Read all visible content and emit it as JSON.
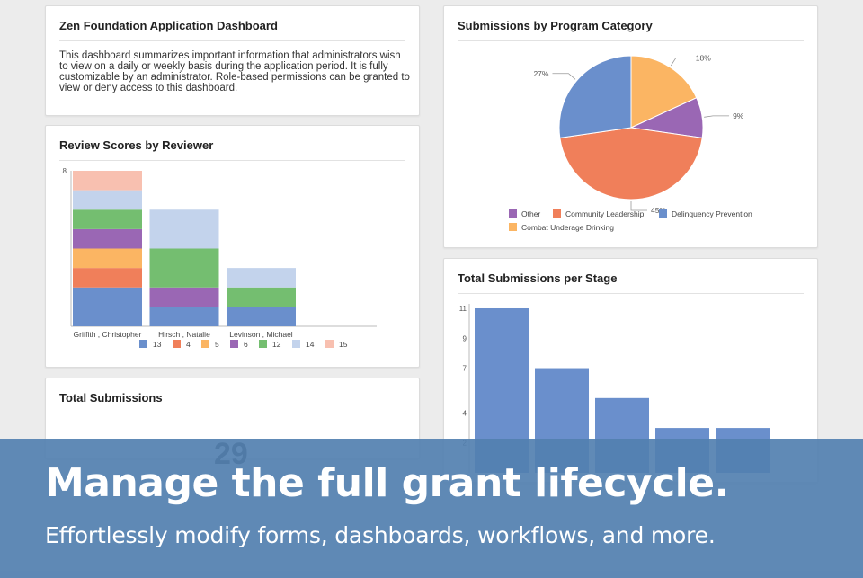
{
  "info_card": {
    "title": "Zen Foundation Application Dashboard",
    "description": "This dashboard summarizes important information that administrators wish to view on a daily or weekly basis during the application period. It is fully customizable by an administrator. Role-based permissions can be granted to view or deny access to this dashboard."
  },
  "review_scores": {
    "title": "Review Scores by Reviewer",
    "chart_data": {
      "type": "bar",
      "stacked": true,
      "categories": [
        "Griffith , Christopher",
        "Hirsch , Natalie",
        "Levinson , Michael"
      ],
      "y_ticks": [
        "8"
      ],
      "ylim": [
        0,
        8
      ],
      "legend_position": "bottom",
      "series": [
        {
          "name": "13",
          "color": "#6a8fcc",
          "values": [
            2,
            1,
            1
          ]
        },
        {
          "name": "4",
          "color": "#f07f5a",
          "values": [
            1,
            0,
            0
          ]
        },
        {
          "name": "5",
          "color": "#fbb563",
          "values": [
            1,
            0,
            0
          ]
        },
        {
          "name": "6",
          "color": "#9a67b4",
          "values": [
            1,
            1,
            0
          ]
        },
        {
          "name": "12",
          "color": "#74be70",
          "values": [
            1,
            2,
            1
          ]
        },
        {
          "name": "14",
          "color": "#c3d3ec",
          "values": [
            1,
            2,
            1
          ]
        },
        {
          "name": "15",
          "color": "#f8c0b0",
          "values": [
            1,
            0,
            0
          ]
        }
      ]
    }
  },
  "total_submissions": {
    "title": "Total Submissions",
    "value": "29"
  },
  "program_category": {
    "title": "Submissions by Program Category",
    "chart_data": {
      "type": "pie",
      "legend_position": "bottom",
      "slices": [
        {
          "name": "Combat Underage Drinking",
          "value": 18,
          "label": "18%",
          "color": "#fbb563"
        },
        {
          "name": "Other",
          "value": 9,
          "label": "9%",
          "color": "#9a67b4"
        },
        {
          "name": "Community Leadership",
          "value": 45,
          "label": "45%",
          "color": "#f07f5a"
        },
        {
          "name": "Delinquency Prevention",
          "value": 27,
          "label": "27%",
          "color": "#6a8fcc"
        }
      ],
      "legend_order": [
        "Other",
        "Community Leadership",
        "Delinquency Prevention",
        "Combat Underage Drinking"
      ]
    }
  },
  "stage_submissions": {
    "title": "Total Submissions per Stage",
    "chart_data": {
      "type": "bar",
      "values": [
        11,
        7,
        5,
        3,
        3
      ],
      "color": "#6a8fcc",
      "y_ticks": [
        2,
        4,
        7,
        9,
        11
      ],
      "ylim": [
        0,
        11.3
      ],
      "grid": false
    }
  },
  "banner": {
    "headline": "Manage the full grant lifecycle.",
    "subline": "Effortlessly modify forms, dashboards, workflows, and more."
  }
}
